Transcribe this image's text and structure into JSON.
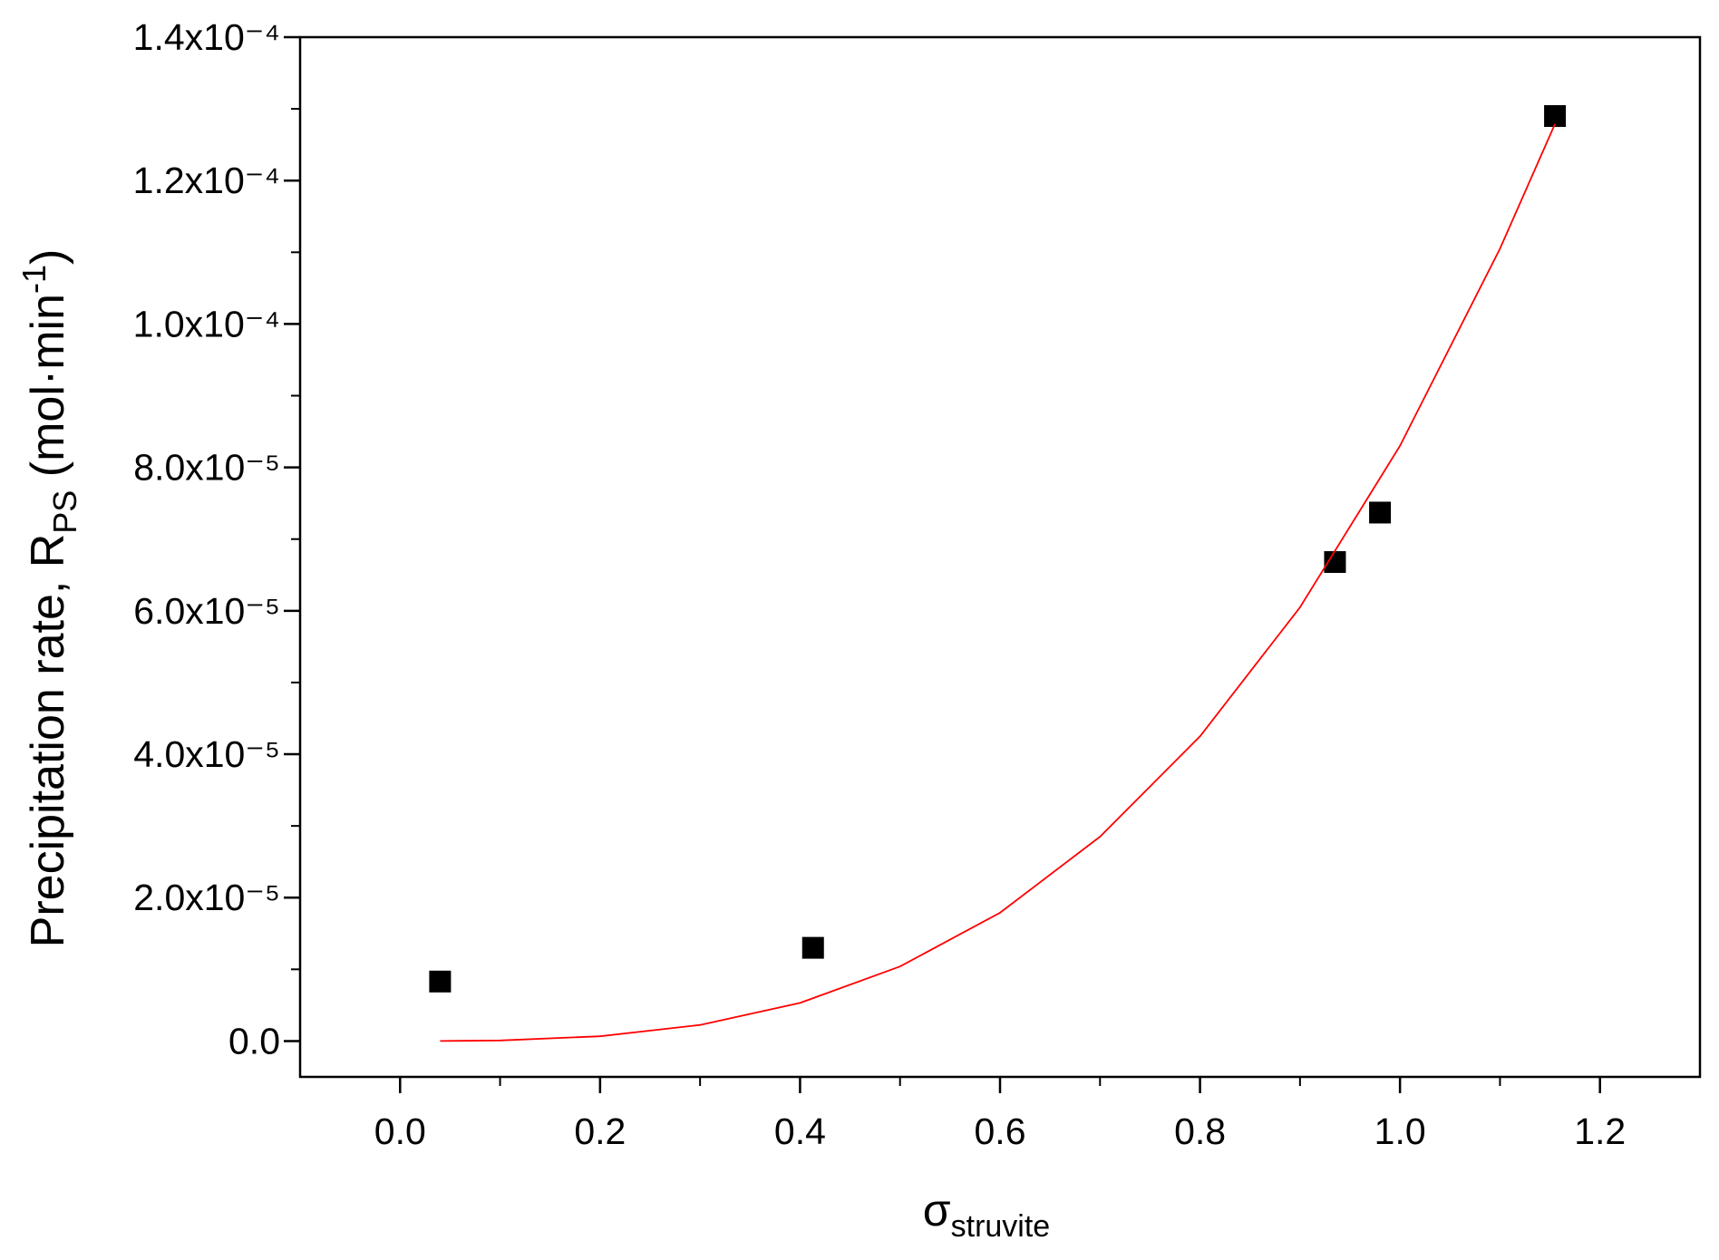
{
  "chart_data": {
    "type": "scatter",
    "xlabel_parts": [
      "σ",
      "struvite"
    ],
    "ylabel_parts": [
      "Precipitation rate, R",
      "PS",
      " (mol·min",
      "-1",
      ")"
    ],
    "xlim": [
      -0.1,
      1.3
    ],
    "ylim": [
      -5e-06,
      0.00014
    ],
    "xticks": [
      {
        "value": 0,
        "label": "0.0"
      },
      0.2,
      0.4,
      0.6,
      0.8,
      {
        "value": 1,
        "label": "1.0"
      },
      1.2
    ],
    "yticks": [
      {
        "value": 0,
        "label": "0.0"
      },
      {
        "value": 2e-05,
        "label": "2.0x10⁻⁵"
      },
      {
        "value": 4e-05,
        "label": "4.0x10⁻⁵"
      },
      {
        "value": 6e-05,
        "label": "6.0x10⁻⁵"
      },
      {
        "value": 8e-05,
        "label": "8.0x10⁻⁵"
      },
      {
        "value": 0.0001,
        "label": "1.0x10⁻⁴"
      },
      {
        "value": 0.00012,
        "label": "1.2x10⁻⁴"
      },
      {
        "value": 0.00014,
        "label": "1.4x10⁻⁴"
      }
    ],
    "minor_xticks": [
      0.1,
      0.3,
      0.5,
      0.7,
      0.9,
      1.1
    ],
    "minor_yticks": [
      1e-05,
      3e-05,
      5e-05,
      7e-05,
      9e-05,
      0.00011,
      0.00013
    ],
    "series": [
      {
        "kind": "points",
        "color": "#000000",
        "x": [
          0.04,
          0.413,
          0.935,
          0.98,
          1.155
        ],
        "values": [
          8.3e-06,
          1.3e-05,
          6.68e-05,
          7.37e-05,
          0.000129
        ]
      },
      {
        "kind": "fit",
        "color": "#ff0000",
        "x": [
          0.04,
          0.1,
          0.2,
          0.3,
          0.4,
          0.5,
          0.6,
          0.7,
          0.8,
          0.9,
          1.0,
          1.1,
          1.155
        ],
        "values": [
          5.3e-09,
          8.3e-08,
          6.64e-07,
          2.24e-06,
          5.31e-06,
          1.04e-05,
          1.79e-05,
          2.85e-05,
          4.25e-05,
          6.05e-05,
          8.3e-05,
          0.0001105,
          0.0001279
        ]
      }
    ]
  }
}
